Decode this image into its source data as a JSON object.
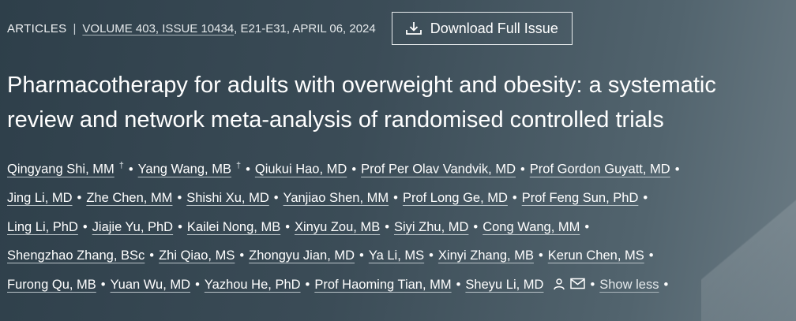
{
  "topbar": {
    "section": "ARTICLES",
    "separator": "|",
    "volume_link": "VOLUME 403, ISSUE 10434",
    "volume_rest": ", E21-E31, APRIL 06, 2024",
    "download_label": "Download Full Issue",
    "download_icon": "download-icon"
  },
  "title": "Pharmacotherapy for adults with overweight and obesity: a systematic review and network meta-analysis of randomised controlled trials",
  "authors": [
    {
      "name": "Qingyang Shi, MM",
      "mark": "†"
    },
    {
      "name": "Yang Wang, MB",
      "mark": "†"
    },
    {
      "name": "Qiukui Hao, MD"
    },
    {
      "name": "Prof Per Olav Vandvik, MD"
    },
    {
      "name": "Prof Gordon Guyatt, MD"
    },
    {
      "name": "Jing Li, MD"
    },
    {
      "name": "Zhe Chen, MM"
    },
    {
      "name": "Shishi Xu, MD"
    },
    {
      "name": "Yanjiao Shen, MM"
    },
    {
      "name": "Prof Long Ge, MD"
    },
    {
      "name": "Prof Feng Sun, PhD"
    },
    {
      "name": "Ling Li, PhD"
    },
    {
      "name": "Jiajie Yu, PhD"
    },
    {
      "name": "Kailei Nong, MB"
    },
    {
      "name": "Xinyu Zou, MB"
    },
    {
      "name": "Siyi Zhu, MD"
    },
    {
      "name": "Cong Wang, MM"
    },
    {
      "name": "Shengzhao Zhang, BSc"
    },
    {
      "name": "Zhi Qiao, MS"
    },
    {
      "name": "Zhongyu Jian, MD"
    },
    {
      "name": "Ya Li, MS"
    },
    {
      "name": "Xinyi Zhang, MB"
    },
    {
      "name": "Kerun Chen, MS"
    },
    {
      "name": "Furong Qu, MB"
    },
    {
      "name": "Yuan Wu, MD"
    },
    {
      "name": "Yazhou He, PhD"
    },
    {
      "name": "Prof Haoming Tian, MM"
    },
    {
      "name": "Sheyu Li, MD",
      "icons": [
        "person-icon",
        "mail-icon"
      ]
    }
  ],
  "bullet": "•",
  "show_less": "Show less",
  "colors": {
    "background": "#3b4c57",
    "text": "#ffffff"
  }
}
